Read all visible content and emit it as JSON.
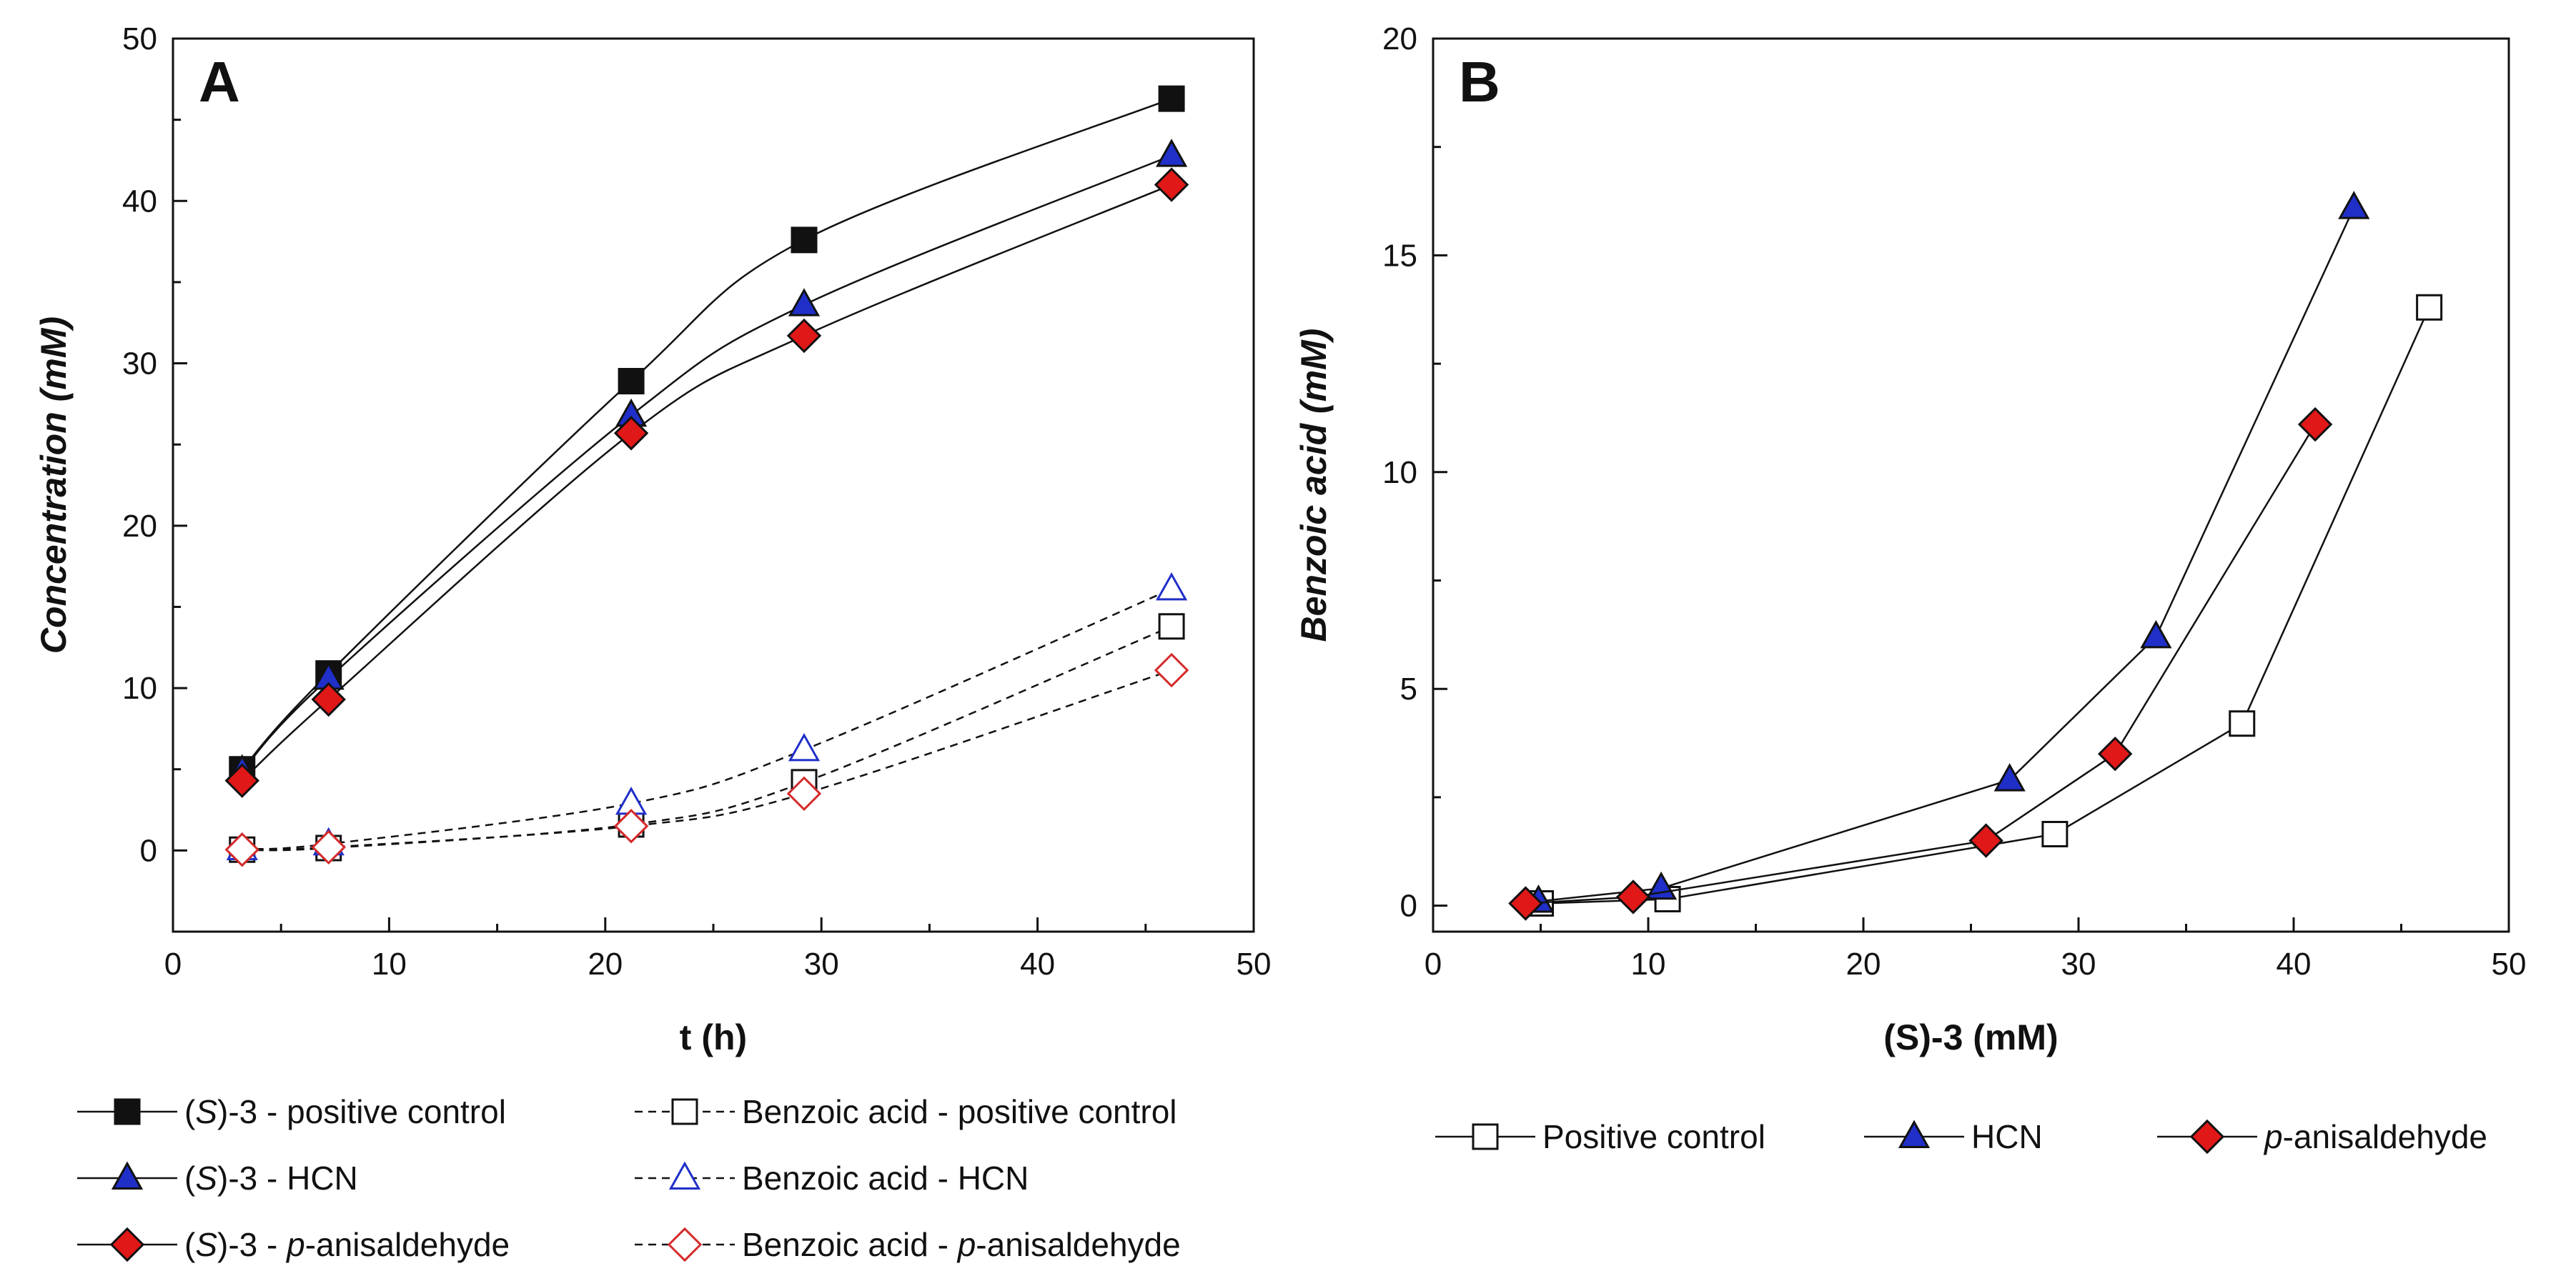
{
  "chart_data": [
    {
      "panel_label": "A",
      "type": "line",
      "x_label": "t (h)",
      "y_label": "Concentration (mM)",
      "xlim": [
        0,
        50
      ],
      "ylim": [
        -5,
        50
      ],
      "x_ticks": [
        0,
        10,
        20,
        30,
        40,
        50
      ],
      "y_ticks": [
        0,
        10,
        20,
        30,
        40,
        50
      ],
      "x_tick_labels": [
        "0",
        "10",
        "20",
        "30",
        "40",
        "50"
      ],
      "y_tick_labels": [
        "0",
        "10",
        "20",
        "30",
        "40",
        "50"
      ],
      "series": [
        {
          "name": "(S)-3 - positive control",
          "legend_prefix": "(",
          "legend_italic": "S",
          "legend_suffix": ")-3 - positive control",
          "marker": "square",
          "filled": true,
          "fill": "#111111",
          "stroke": "#111111",
          "line": "solid",
          "smooth": true,
          "x": [
            3.2,
            7.2,
            21.2,
            29.2,
            46.2
          ],
          "y": [
            5.0,
            10.9,
            28.9,
            37.6,
            46.3
          ]
        },
        {
          "name": "(S)-3 - HCN",
          "legend_prefix": "(",
          "legend_italic": "S",
          "legend_suffix": ")-3 - HCN",
          "marker": "triangle",
          "filled": true,
          "fill": "#1f2fc8",
          "stroke": "#111111",
          "line": "solid",
          "smooth": true,
          "x": [
            3.2,
            7.2,
            21.2,
            29.2,
            46.2
          ],
          "y": [
            4.9,
            10.6,
            26.8,
            33.6,
            42.8
          ]
        },
        {
          "name": "(S)-3 - p-anisaldehyde",
          "legend_prefix": "(",
          "legend_italic": "S",
          "legend_suffix": ")-3 - ",
          "legend_italic2": "p",
          "legend_suffix2": "-anisaldehyde",
          "marker": "diamond",
          "filled": true,
          "fill": "#e01818",
          "stroke": "#111111",
          "line": "solid",
          "smooth": true,
          "x": [
            3.2,
            7.2,
            21.2,
            29.2,
            46.2
          ],
          "y": [
            4.3,
            9.3,
            25.7,
            31.7,
            41.0
          ]
        },
        {
          "name": "Benzoic acid - positive control",
          "legend_prefix": "Benzoic acid - positive control",
          "marker": "square",
          "filled": false,
          "fill": "#ffffff",
          "stroke": "#111111",
          "line": "dashed",
          "smooth": true,
          "x": [
            3.2,
            7.2,
            21.2,
            29.2,
            46.2
          ],
          "y": [
            0.05,
            0.15,
            1.6,
            4.2,
            13.8
          ]
        },
        {
          "name": "Benzoic acid - HCN",
          "legend_prefix": "Benzoic acid - HCN",
          "marker": "triangle",
          "filled": false,
          "fill": "#ffffff",
          "stroke": "#1f2fc8",
          "line": "dashed",
          "smooth": true,
          "x": [
            3.2,
            7.2,
            21.2,
            29.2,
            46.2
          ],
          "y": [
            0.1,
            0.4,
            2.9,
            6.2,
            16.1
          ]
        },
        {
          "name": "Benzoic acid - p-anisaldehyde",
          "legend_prefix": "Benzoic acid - ",
          "legend_italic": "p",
          "legend_suffix": "-anisaldehyde",
          "marker": "diamond",
          "filled": false,
          "fill": "#ffffff",
          "stroke": "#d42a2a",
          "line": "dashed",
          "smooth": true,
          "x": [
            3.2,
            7.2,
            21.2,
            29.2,
            46.2
          ],
          "y": [
            0.05,
            0.2,
            1.5,
            3.5,
            11.1
          ]
        }
      ]
    },
    {
      "panel_label": "B",
      "type": "line",
      "x_label": "(S)-3 (mM)",
      "y_label": "Benzoic acid (mM)",
      "xlim": [
        0,
        50
      ],
      "ylim": [
        -0.6,
        20
      ],
      "x_ticks": [
        0,
        10,
        20,
        30,
        40,
        50
      ],
      "y_ticks": [
        0,
        5,
        10,
        15,
        20
      ],
      "x_tick_labels": [
        "0",
        "10",
        "20",
        "30",
        "40",
        "50"
      ],
      "y_tick_labels": [
        "0",
        "5",
        "10",
        "15",
        "20"
      ],
      "series": [
        {
          "name": "Positive control",
          "legend_prefix": "Positive control",
          "marker": "square",
          "filled": false,
          "fill": "#ffffff",
          "stroke": "#111111",
          "line": "solid",
          "smooth": false,
          "x": [
            5.0,
            10.9,
            28.9,
            37.6,
            46.3
          ],
          "y": [
            0.05,
            0.15,
            1.65,
            4.2,
            13.8
          ]
        },
        {
          "name": "HCN",
          "legend_prefix": "HCN",
          "marker": "triangle",
          "filled": true,
          "fill": "#1f2fc8",
          "stroke": "#111111",
          "line": "solid",
          "smooth": false,
          "x": [
            4.9,
            10.6,
            26.8,
            33.6,
            42.8
          ],
          "y": [
            0.1,
            0.4,
            2.9,
            6.2,
            16.1
          ]
        },
        {
          "name": "p-anisaldehyde",
          "legend_italic": "p",
          "legend_suffix": "-anisaldehyde",
          "marker": "diamond",
          "filled": true,
          "fill": "#e01818",
          "stroke": "#111111",
          "line": "solid",
          "smooth": false,
          "x": [
            4.3,
            9.3,
            25.7,
            31.7,
            41.0
          ],
          "y": [
            0.05,
            0.2,
            1.5,
            3.5,
            11.1
          ]
        }
      ]
    }
  ]
}
